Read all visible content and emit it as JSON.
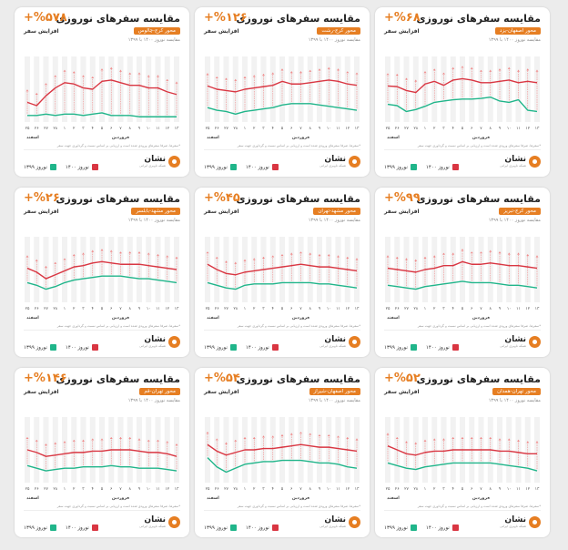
{
  "colors": {
    "orange": "#e67e22",
    "red": "#d93642",
    "green": "#20b58a",
    "grid": "#f2f2f2",
    "arrow": "#f08a8a"
  },
  "chart_data": [
    {
      "type": "line",
      "percent": "+%۶۸",
      "title": "مقایسه سفرهای نوروزی",
      "growth_label": "افزایش سفر",
      "route": "محور اصفهان-یزد",
      "compare": "مقایسه نوروز ۱۴۰۰ با ۱۳۹۹",
      "footnote": "*سفرها، صرفا سفرهای ورودی شده است و ارزیابی بر اساس نسبت و گرداوری جهت سفر",
      "month_labels": [
        "اسفند",
        "فروردین"
      ],
      "ylim": [
        0,
        100
      ],
      "x": [
        "۲۵",
        "۲۶",
        "۲۷",
        "۲۸",
        "۱",
        "۲",
        "۳",
        "۴",
        "۵",
        "۶",
        "۷",
        "۸",
        "۹",
        "۱۰",
        "۱۱",
        "۱۲",
        "۱۳"
      ],
      "series": [
        {
          "name": "نوروز ۱۴۰۰",
          "values": [
            55,
            54,
            48,
            45,
            58,
            62,
            56,
            64,
            66,
            64,
            60,
            60,
            62,
            64,
            60,
            62,
            60
          ]
        },
        {
          "name": "نوروز ۱۳۹۹",
          "values": [
            27,
            25,
            16,
            19,
            24,
            30,
            32,
            34,
            35,
            35,
            36,
            38,
            32,
            30,
            34,
            18,
            16
          ]
        }
      ]
    },
    {
      "type": "line",
      "percent": "+%۱۲۶",
      "title": "مقایسه سفرهای نوروزی",
      "growth_label": "افزایش سفر",
      "route": "محور کرج-رشت",
      "compare": "مقایسه نوروز ۱۴۰۰ با ۱۳۹۹",
      "footnote": "*سفرها، صرفا سفرهای ورودی شده است و ارزیابی بر اساس نسبت و گرداوری جهت سفر",
      "month_labels": [
        "اسفند",
        "فروردین"
      ],
      "ylim": [
        0,
        100
      ],
      "x": [
        "۲۵",
        "۲۶",
        "۲۷",
        "۲۸",
        "۱",
        "۲",
        "۳",
        "۴",
        "۵",
        "۶",
        "۷",
        "۸",
        "۹",
        "۱۰",
        "۱۱",
        "۱۲",
        "۱۳"
      ],
      "series": [
        {
          "name": "نوروز ۱۴۰۰",
          "values": [
            55,
            50,
            48,
            46,
            50,
            52,
            54,
            56,
            62,
            58,
            58,
            60,
            62,
            64,
            62,
            58,
            56
          ]
        },
        {
          "name": "نوروز ۱۳۹۹",
          "values": [
            22,
            18,
            16,
            12,
            16,
            18,
            20,
            22,
            26,
            28,
            28,
            28,
            26,
            24,
            22,
            20,
            18
          ]
        }
      ]
    },
    {
      "type": "line",
      "percent": "+%۵۷۸",
      "title": "مقایسه سفرهای نوروزی",
      "growth_label": "افزایش سفر",
      "route": "محور کرج-چالوس",
      "compare": "مقایسه نوروز ۱۴۰۰ با ۱۳۹۹",
      "footnote": "*سفرها، صرفا سفرهای ورودی شده است و ارزیابی بر اساس نسبت و گرداوری جهت سفر",
      "month_labels": [
        "اسفند",
        "فروردین"
      ],
      "ylim": [
        0,
        100
      ],
      "x": [
        "۲۵",
        "۲۶",
        "۲۷",
        "۲۸",
        "۱",
        "۲",
        "۳",
        "۴",
        "۵",
        "۶",
        "۷",
        "۸",
        "۹",
        "۱۰",
        "۱۱",
        "۱۲",
        "۱۳"
      ],
      "series": [
        {
          "name": "نوروز ۱۴۰۰",
          "values": [
            30,
            25,
            40,
            52,
            60,
            58,
            52,
            50,
            62,
            64,
            60,
            56,
            56,
            52,
            52,
            46,
            42
          ]
        },
        {
          "name": "نوروز ۱۳۹۹",
          "values": [
            10,
            10,
            12,
            10,
            12,
            12,
            10,
            12,
            14,
            10,
            10,
            10,
            8,
            8,
            8,
            8,
            8
          ]
        }
      ]
    },
    {
      "type": "line",
      "percent": "+%۹۹",
      "title": "مقایسه سفرهای نوروزی",
      "growth_label": "افزایش سفر",
      "route": "محور کرج-تبریز",
      "compare": "مقایسه نوروز ۱۴۰۰ با ۱۳۹۹",
      "footnote": "*سفرها، صرفا سفرهای ورودی شده است و ارزیابی بر اساس نسبت و گرداوری جهت سفر",
      "month_labels": [
        "اسفند",
        "فروردین"
      ],
      "ylim": [
        0,
        100
      ],
      "x": [
        "۲۵",
        "۲۶",
        "۲۷",
        "۲۸",
        "۱",
        "۲",
        "۳",
        "۴",
        "۵",
        "۶",
        "۷",
        "۸",
        "۹",
        "۱۰",
        "۱۱",
        "۱۲",
        "۱۳"
      ],
      "series": [
        {
          "name": "نوروز ۱۴۰۰",
          "values": [
            52,
            50,
            48,
            46,
            50,
            52,
            56,
            56,
            62,
            58,
            58,
            60,
            58,
            56,
            56,
            54,
            52
          ]
        },
        {
          "name": "نوروز ۱۳۹۹",
          "values": [
            26,
            24,
            22,
            20,
            24,
            26,
            28,
            30,
            32,
            30,
            30,
            30,
            28,
            26,
            26,
            24,
            22
          ]
        }
      ]
    },
    {
      "type": "line",
      "percent": "+%۴۵",
      "title": "مقایسه سفرهای نوروزی",
      "growth_label": "افزایش سفر",
      "route": "محور مشهد-تهران",
      "compare": "مقایسه نوروز ۱۴۰۰ با ۱۳۹۹",
      "footnote": "*سفرها، صرفا سفرهای ورودی شده است و ارزیابی بر اساس نسبت و گرداوری جهت سفر",
      "month_labels": [
        "اسفند",
        "فروردین"
      ],
      "ylim": [
        0,
        100
      ],
      "x": [
        "۲۵",
        "۲۶",
        "۲۷",
        "۲۸",
        "۱",
        "۲",
        "۳",
        "۴",
        "۵",
        "۶",
        "۷",
        "۸",
        "۹",
        "۱۰",
        "۱۱",
        "۱۲",
        "۱۳"
      ],
      "series": [
        {
          "name": "نوروز ۱۴۰۰",
          "values": [
            58,
            50,
            44,
            42,
            46,
            48,
            50,
            52,
            54,
            56,
            58,
            56,
            54,
            54,
            52,
            50,
            48
          ]
        },
        {
          "name": "نوروز ۱۳۹۹",
          "values": [
            30,
            26,
            22,
            20,
            26,
            28,
            28,
            28,
            30,
            30,
            30,
            30,
            28,
            28,
            26,
            24,
            22
          ]
        }
      ]
    },
    {
      "type": "line",
      "percent": "+%۲۶",
      "title": "مقایسه سفرهای نوروزی",
      "growth_label": "افزایش سفر",
      "route": "محور مشهد-بابلسر",
      "compare": "مقایسه نوروز ۱۴۰۰ با ۱۳۹۹",
      "footnote": "*سفرها، صرفا سفرهای ورودی شده است و ارزیابی بر اساس نسبت و گرداوری جهت سفر",
      "month_labels": [
        "اسفند",
        "فروردین"
      ],
      "ylim": [
        0,
        100
      ],
      "x": [
        "۲۵",
        "۲۶",
        "۲۷",
        "۲۸",
        "۱",
        "۲",
        "۳",
        "۴",
        "۵",
        "۶",
        "۷",
        "۸",
        "۹",
        "۱۰",
        "۱۱",
        "۱۲",
        "۱۳"
      ],
      "series": [
        {
          "name": "نوروز ۱۴۰۰",
          "values": [
            52,
            46,
            36,
            42,
            48,
            54,
            56,
            60,
            62,
            60,
            58,
            58,
            58,
            56,
            54,
            52,
            50
          ]
        },
        {
          "name": "نوروز ۱۳۹۹",
          "values": [
            30,
            26,
            20,
            24,
            30,
            34,
            36,
            38,
            40,
            40,
            40,
            38,
            36,
            36,
            34,
            32,
            30
          ]
        }
      ]
    },
    {
      "type": "line",
      "percent": "+%۵۲",
      "title": "مقایسه سفرهای نوروزی",
      "growth_label": "افزایش سفر",
      "route": "محور تهران-همدان",
      "compare": "مقایسه نوروز ۱۴۰۰ با ۱۳۹۹",
      "footnote": "*سفرها، صرفا سفرهای ورودی شده است و ارزیابی بر اساس نسبت و گرداوری جهت سفر",
      "month_labels": [
        "اسفند",
        "فروردین"
      ],
      "ylim": [
        0,
        100
      ],
      "x": [
        "۲۵",
        "۲۶",
        "۲۷",
        "۲۸",
        "۱",
        "۲",
        "۳",
        "۴",
        "۵",
        "۶",
        "۷",
        "۸",
        "۹",
        "۱۰",
        "۱۱",
        "۱۲",
        "۱۳"
      ],
      "series": [
        {
          "name": "نوروز ۱۴۰۰",
          "values": [
            56,
            50,
            44,
            42,
            46,
            48,
            48,
            50,
            50,
            50,
            50,
            50,
            48,
            48,
            46,
            44,
            44
          ]
        },
        {
          "name": "نوروز ۱۳۹۹",
          "values": [
            30,
            26,
            22,
            20,
            24,
            26,
            28,
            30,
            30,
            30,
            30,
            30,
            28,
            26,
            24,
            22,
            18
          ]
        }
      ]
    },
    {
      "type": "line",
      "percent": "+%۵۴",
      "title": "مقایسه سفرهای نوروزی",
      "growth_label": "افزایش سفر",
      "route": "محور اصفهان-شیراز",
      "compare": "مقایسه نوروز ۱۴۰۰ با ۱۳۹۹",
      "footnote": "*سفرها، صرفا سفرهای ورودی شده است و ارزیابی بر اساس نسبت و گرداوری جهت سفر",
      "month_labels": [
        "اسفند",
        "فروردین"
      ],
      "ylim": [
        0,
        100
      ],
      "x": [
        "۲۵",
        "۲۶",
        "۲۷",
        "۲۸",
        "۱",
        "۲",
        "۳",
        "۴",
        "۵",
        "۶",
        "۷",
        "۸",
        "۹",
        "۱۰",
        "۱۱",
        "۱۲",
        "۱۳"
      ],
      "series": [
        {
          "name": "نوروز ۱۴۰۰",
          "values": [
            58,
            48,
            42,
            46,
            50,
            50,
            52,
            52,
            54,
            56,
            58,
            56,
            54,
            54,
            52,
            50,
            48
          ]
        },
        {
          "name": "نوروز ۱۳۹۹",
          "values": [
            38,
            24,
            16,
            22,
            28,
            30,
            32,
            32,
            34,
            34,
            34,
            32,
            30,
            30,
            28,
            24,
            22
          ]
        }
      ]
    },
    {
      "type": "line",
      "percent": "+%۱۴۶",
      "title": "مقایسه سفرهای نوروزی",
      "growth_label": "افزایش سفر",
      "route": "محور تهران-قم",
      "compare": "مقایسه نوروز ۱۴۰۰ با ۱۳۹۹",
      "footnote": "*سفرها، صرفا سفرهای ورودی شده است و ارزیابی بر اساس نسبت و گرداوری جهت سفر",
      "month_labels": [
        "اسفند",
        "فروردین"
      ],
      "ylim": [
        0,
        100
      ],
      "x": [
        "۲۵",
        "۲۶",
        "۲۷",
        "۲۸",
        "۱",
        "۲",
        "۳",
        "۴",
        "۵",
        "۶",
        "۷",
        "۸",
        "۹",
        "۱۰",
        "۱۱",
        "۱۲",
        "۱۳"
      ],
      "series": [
        {
          "name": "نوروز ۱۴۰۰",
          "values": [
            50,
            46,
            40,
            42,
            44,
            46,
            46,
            48,
            48,
            50,
            50,
            50,
            48,
            46,
            46,
            44,
            40
          ]
        },
        {
          "name": "نوروز ۱۳۹۹",
          "values": [
            26,
            22,
            18,
            20,
            22,
            22,
            24,
            24,
            24,
            26,
            24,
            24,
            22,
            22,
            22,
            20,
            18
          ]
        }
      ]
    }
  ],
  "logo": {
    "name": "نشان",
    "subtitle": "شبکه ناوبری ایرانی"
  }
}
